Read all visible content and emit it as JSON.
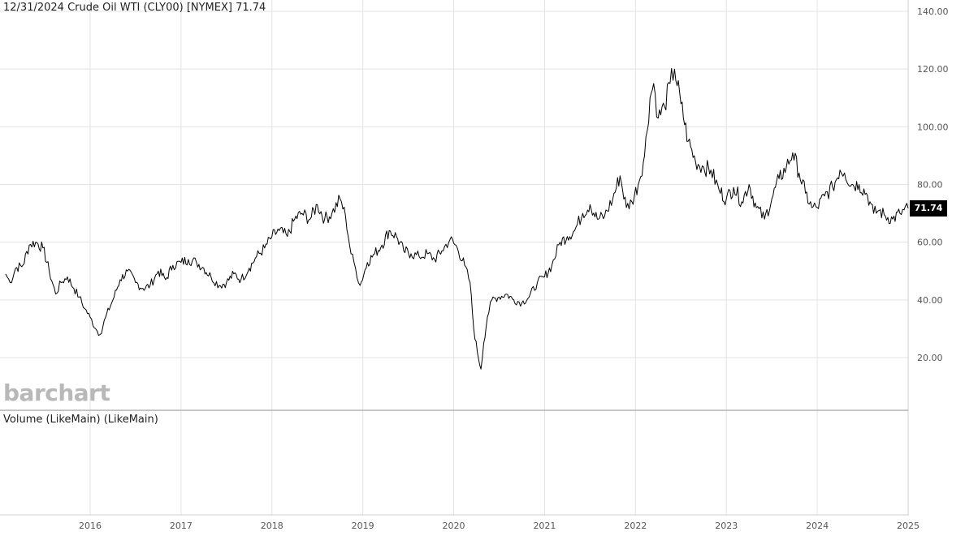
{
  "header": {
    "date": "12/31/2024",
    "instrument": "Crude Oil WTI (CLY00) [NYMEX]",
    "last": "71.74"
  },
  "volume_label": "Volume (LikeMain)  (LikeMain)",
  "logo": "barchart",
  "last_price_badge": "71.74",
  "colors": {
    "line": "#000000",
    "grid": "#e3e3e3",
    "badge_bg": "#000000",
    "logo": "#b8b8b8"
  },
  "chart_data": {
    "type": "line",
    "title": "",
    "xlabel": "",
    "ylabel": "",
    "ylim": [
      0,
      140
    ],
    "xlim": [
      2015.07,
      2025.0
    ],
    "y_ticks": [
      "20.00",
      "40.00",
      "60.00",
      "80.00",
      "100.00",
      "120.00",
      "140.00"
    ],
    "x_ticks": [
      "2016",
      "2017",
      "2018",
      "2019",
      "2020",
      "2021",
      "2022",
      "2023",
      "2024",
      "2025"
    ],
    "grid": true,
    "series": [
      {
        "x": [
          2015.07,
          2015.12,
          2015.18,
          2015.26,
          2015.33,
          2015.4,
          2015.48,
          2015.55,
          2015.62,
          2015.68,
          2015.75,
          2015.82,
          2015.88,
          2015.94,
          2016.0,
          2016.06,
          2016.11,
          2016.17,
          2016.25,
          2016.33,
          2016.41,
          2016.5,
          2016.58,
          2016.66,
          2016.75,
          2016.83,
          2016.91,
          2017.0,
          2017.08,
          2017.17,
          2017.25,
          2017.33,
          2017.42,
          2017.5,
          2017.58,
          2017.66,
          2017.75,
          2017.83,
          2017.92,
          2018.0,
          2018.08,
          2018.17,
          2018.25,
          2018.33,
          2018.42,
          2018.5,
          2018.58,
          2018.66,
          2018.75,
          2018.81,
          2018.87,
          2018.92,
          2018.97,
          2019.05,
          2019.13,
          2019.21,
          2019.29,
          2019.37,
          2019.45,
          2019.53,
          2019.62,
          2019.71,
          2019.79,
          2019.87,
          2019.96,
          2020.04,
          2020.12,
          2020.18,
          2020.22,
          2020.26,
          2020.3,
          2020.33,
          2020.37,
          2020.42,
          2020.5,
          2020.58,
          2020.66,
          2020.75,
          2020.83,
          2020.92,
          2021.0,
          2021.08,
          2021.17,
          2021.25,
          2021.33,
          2021.42,
          2021.5,
          2021.58,
          2021.66,
          2021.75,
          2021.83,
          2021.9,
          2021.96,
          2022.03,
          2022.1,
          2022.16,
          2022.2,
          2022.25,
          2022.32,
          2022.38,
          2022.43,
          2022.5,
          2022.58,
          2022.66,
          2022.75,
          2022.83,
          2022.92,
          2023.0,
          2023.08,
          2023.17,
          2023.25,
          2023.33,
          2023.42,
          2023.5,
          2023.58,
          2023.66,
          2023.73,
          2023.8,
          2023.87,
          2023.94,
          2024.0,
          2024.08,
          2024.17,
          2024.25,
          2024.3,
          2024.38,
          2024.46,
          2024.54,
          2024.58,
          2024.62,
          2024.68,
          2024.75,
          2024.83,
          2024.91,
          2025.0
        ],
        "values": [
          49,
          46,
          51,
          52,
          59,
          60,
          58,
          50,
          42,
          46,
          48,
          44,
          41,
          37,
          34,
          30,
          28,
          34,
          40,
          47,
          50,
          46,
          44,
          45,
          50,
          47,
          52,
          53,
          54,
          53,
          51,
          48,
          45,
          46,
          49,
          47,
          51,
          55,
          58,
          62,
          64,
          62,
          68,
          70,
          68,
          73,
          68,
          70,
          75,
          69,
          56,
          51,
          45,
          53,
          56,
          59,
          64,
          62,
          57,
          56,
          55,
          56,
          54,
          57,
          61,
          58,
          52,
          46,
          30,
          22,
          16,
          25,
          34,
          40,
          41,
          42,
          40,
          39,
          41,
          46,
          48,
          52,
          60,
          62,
          64,
          70,
          73,
          68,
          69,
          75,
          83,
          72,
          74,
          80,
          90,
          110,
          115,
          103,
          107,
          115,
          120,
          108,
          95,
          88,
          86,
          85,
          78,
          75,
          79,
          74,
          80,
          72,
          68,
          75,
          82,
          86,
          91,
          84,
          77,
          72,
          72,
          76,
          79,
          85,
          84,
          80,
          80,
          77,
          74,
          70,
          71,
          69,
          68,
          70,
          71.74
        ]
      }
    ]
  }
}
